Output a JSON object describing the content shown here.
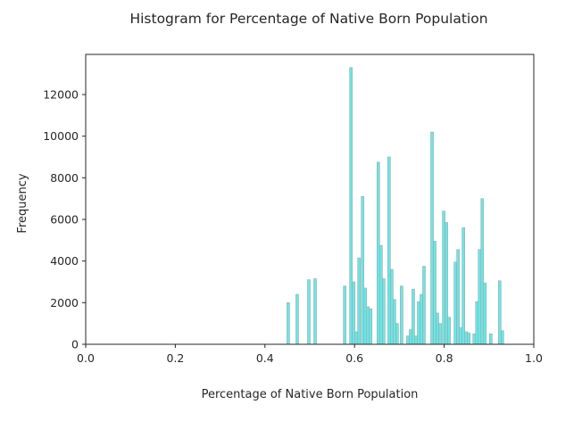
{
  "chart_data": {
    "type": "bar",
    "title": "Histogram for Percentage of Native Born Population",
    "xlabel": "Percentage of Native Born Population",
    "ylabel": "Frequency",
    "xlim": [
      0.0,
      1.0
    ],
    "ylim": [
      0,
      13900
    ],
    "xticks": [
      "0.0",
      "0.2",
      "0.4",
      "0.6",
      "0.8",
      "1.0"
    ],
    "yticks": [
      "0",
      "2000",
      "4000",
      "6000",
      "8000",
      "10000",
      "12000"
    ],
    "grid": false,
    "legend": null,
    "bar_color": "#40E0E0",
    "bar_edge_color": "#9ea8a8",
    "bin_width": 0.006,
    "x": [
      0.452,
      0.472,
      0.498,
      0.512,
      0.578,
      0.592,
      0.598,
      0.604,
      0.61,
      0.618,
      0.624,
      0.63,
      0.636,
      0.653,
      0.659,
      0.665,
      0.677,
      0.683,
      0.689,
      0.695,
      0.705,
      0.719,
      0.725,
      0.731,
      0.737,
      0.743,
      0.749,
      0.755,
      0.773,
      0.779,
      0.785,
      0.791,
      0.799,
      0.805,
      0.811,
      0.825,
      0.831,
      0.837,
      0.843,
      0.849,
      0.855,
      0.867,
      0.873,
      0.879,
      0.885,
      0.891,
      0.904,
      0.924,
      0.93
    ],
    "values": [
      2000,
      2400,
      3100,
      3150,
      2800,
      13300,
      3000,
      600,
      4150,
      7100,
      2700,
      1800,
      1700,
      8750,
      4750,
      3150,
      9000,
      3600,
      2150,
      1000,
      2800,
      400,
      700,
      2650,
      400,
      2050,
      2400,
      3750,
      10200,
      4950,
      1500,
      1000,
      6400,
      5850,
      1300,
      3950,
      4550,
      800,
      5600,
      600,
      550,
      500,
      2050,
      4550,
      7000,
      2950,
      500,
      3050,
      650
    ]
  }
}
